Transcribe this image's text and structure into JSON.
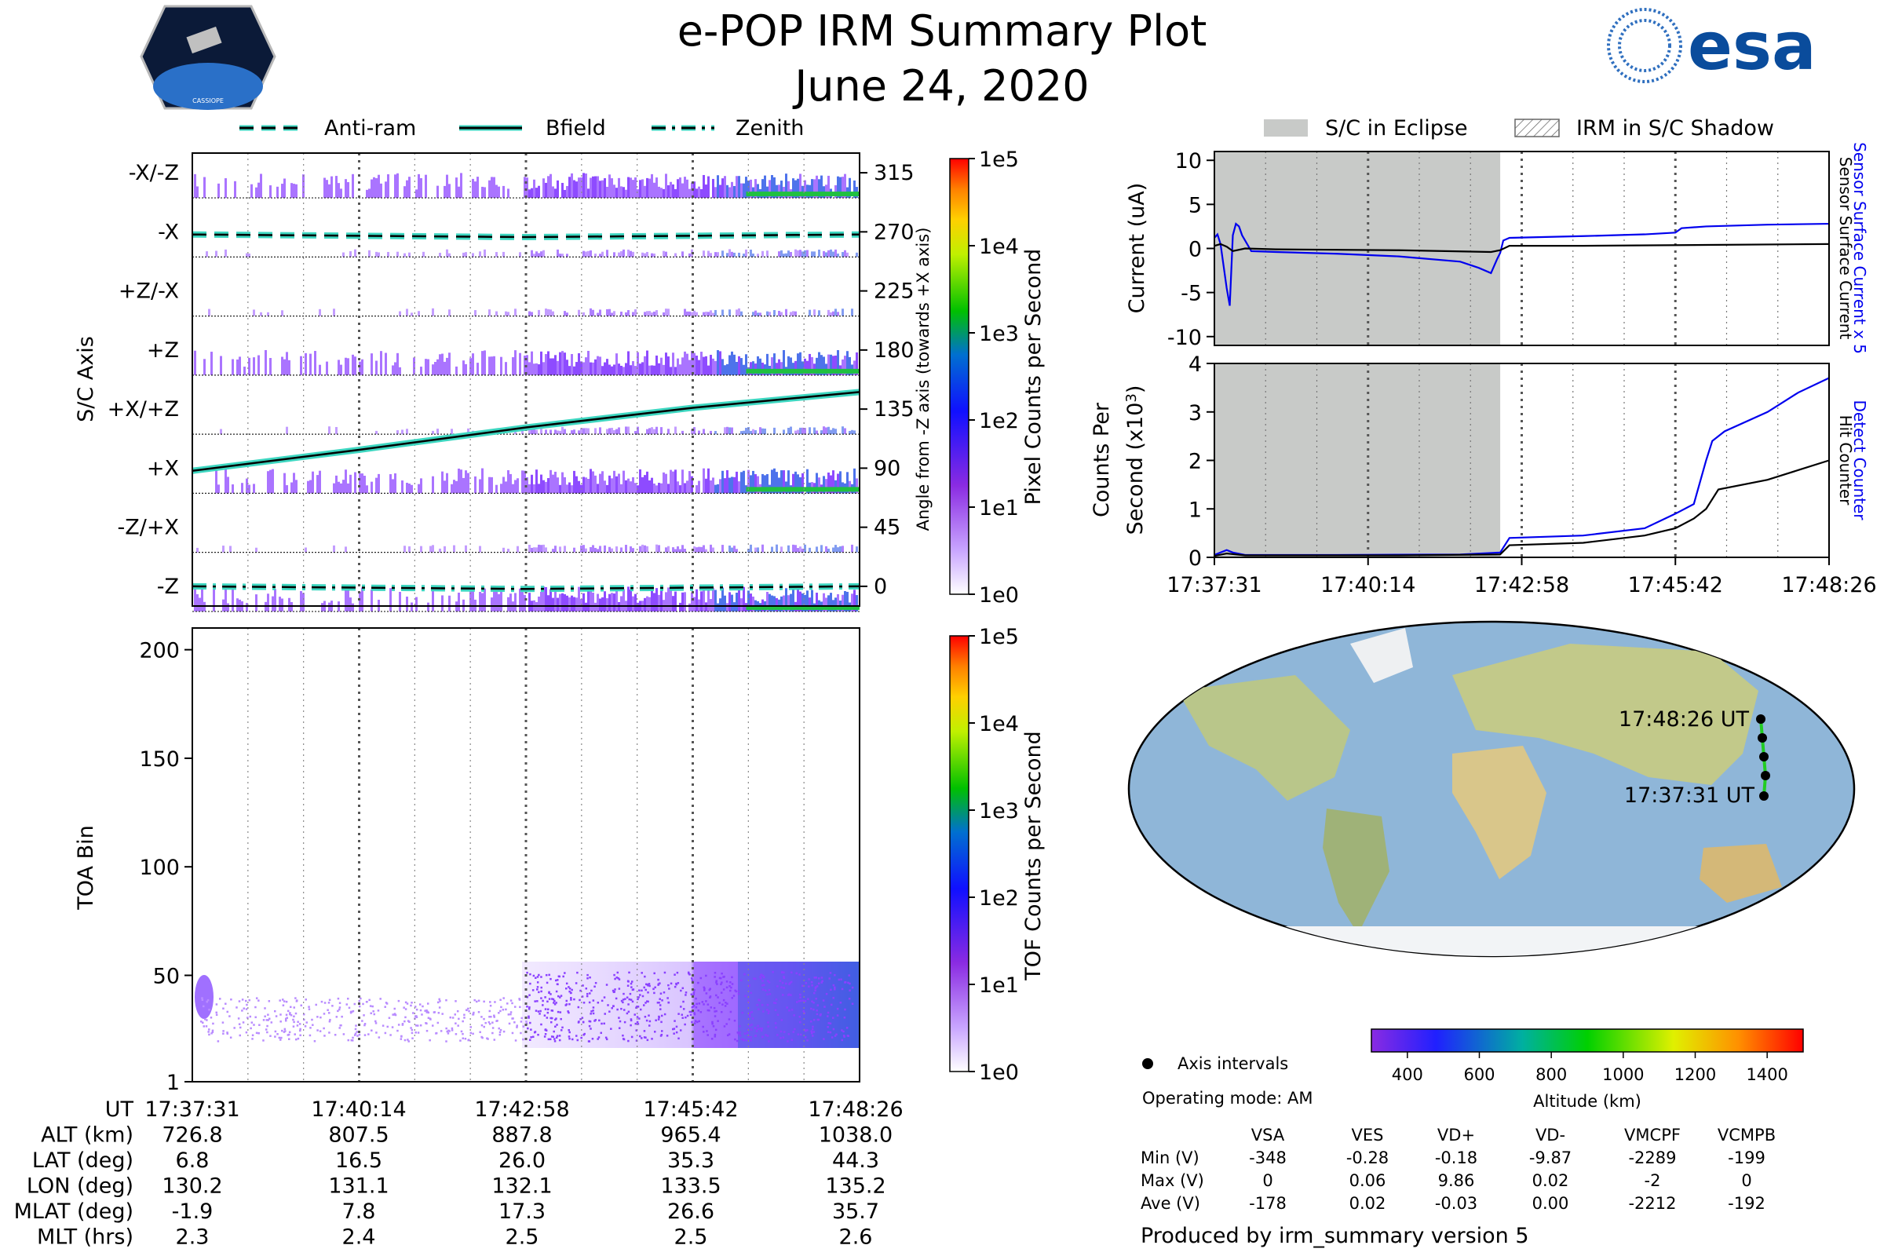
{
  "header": {
    "title": "e-POP IRM Summary Plot",
    "date": "June 24, 2020",
    "mission_logo": "CASSIOPE",
    "agency_logo": "esa"
  },
  "colors": {
    "current_blue": "#0000ee",
    "eclipse_gray": "#c8cac8",
    "bfield_teal": "#3dd6c0"
  },
  "legend_top_left": [
    "Anti-ram",
    "Bfield",
    "Zenith"
  ],
  "legend_top_right": [
    "S/C in Eclipse",
    "IRM in S/C Shadow"
  ],
  "chart_data": [
    {
      "id": "sc-axis-panel",
      "type": "heatmap",
      "ylabel": "S/C Axis",
      "y_categories": [
        "-X/-Z",
        "-X",
        "+Z/-X",
        "+Z",
        "+X/+Z",
        "+X",
        "-Z/+X",
        "-Z"
      ],
      "right_ylabel": "Angle from -Z axis (towards +X axis)",
      "right_ticks": [
        315,
        270,
        225,
        180,
        135,
        90,
        45,
        0
      ],
      "right_ylim": [
        -15,
        330
      ],
      "series": [
        {
          "name": "Bfield",
          "x": [
            0,
            0.25,
            0.5,
            0.75,
            1.0
          ],
          "y": [
            88,
            104,
            121,
            136,
            148
          ]
        },
        {
          "name": "Anti-ram",
          "x": [
            0,
            0.5,
            1.0
          ],
          "y": [
            268,
            266,
            268
          ]
        },
        {
          "name": "Zenith",
          "x": [
            0,
            0.5,
            1.0
          ],
          "y": [
            0,
            -2,
            0
          ]
        }
      ],
      "colorbar": {
        "label": "Pixel Counts per Second",
        "ticks": [
          "1e5",
          "1e4",
          "1e3",
          "1e2",
          "1e1",
          "1e0"
        ]
      }
    },
    {
      "id": "toa-panel",
      "type": "heatmap",
      "ylabel": "TOA Bin",
      "yticks": [
        200,
        150,
        100,
        50,
        1
      ],
      "ylim": [
        1,
        210
      ],
      "colorbar": {
        "label": "TOF Counts per Second",
        "ticks": [
          "1e5",
          "1e4",
          "1e3",
          "1e2",
          "1e1",
          "1e0"
        ]
      }
    },
    {
      "id": "current-panel",
      "type": "line",
      "ylabel": "Current (uA)",
      "ylim": [
        -11,
        11
      ],
      "yticks": [
        10,
        5,
        0,
        -5,
        -10
      ],
      "eclipse_range": [
        0,
        0.465
      ],
      "series": [
        {
          "name": "Sensor Surface Current x 5",
          "color": "#0000ee",
          "x": [
            0,
            0.005,
            0.01,
            0.02,
            0.025,
            0.03,
            0.035,
            0.04,
            0.045,
            0.06,
            0.1,
            0.2,
            0.3,
            0.4,
            0.43,
            0.45,
            0.46,
            0.465,
            0.47,
            0.48,
            0.6,
            0.7,
            0.75,
            0.76,
            0.8,
            0.9,
            1.0
          ],
          "y": [
            1.2,
            1.6,
            0.5,
            -4.5,
            -6.5,
            1.5,
            2.8,
            2.5,
            1.5,
            -0.3,
            -0.4,
            -0.6,
            -0.9,
            -1.5,
            -2.2,
            -2.8,
            -1.2,
            -0.5,
            0.9,
            1.2,
            1.4,
            1.6,
            1.8,
            2.3,
            2.5,
            2.7,
            2.8
          ]
        },
        {
          "name": "Sensor Surface Current",
          "color": "#000000",
          "x": [
            0,
            0.01,
            0.02,
            0.03,
            0.05,
            0.1,
            0.3,
            0.45,
            0.465,
            0.48,
            0.6,
            0.8,
            1.0
          ],
          "y": [
            0.3,
            0.5,
            0.2,
            -0.3,
            0.0,
            -0.1,
            -0.2,
            -0.4,
            -0.2,
            0.3,
            0.3,
            0.4,
            0.5
          ]
        }
      ],
      "right_labels": [
        "Sensor Surface Current x 5",
        "Sensor Surface Current"
      ]
    },
    {
      "id": "counts-panel",
      "type": "line",
      "ylabel": "Counts Per Second (x10",
      "ylabel_exp": "3",
      "ylabel_end": ")",
      "ylim": [
        0,
        4
      ],
      "yticks": [
        4,
        3,
        2,
        1,
        0
      ],
      "eclipse_range": [
        0,
        0.465
      ],
      "series": [
        {
          "name": "Detect Counter",
          "color": "#0000ee",
          "x": [
            0,
            0.02,
            0.03,
            0.05,
            0.2,
            0.4,
            0.465,
            0.48,
            0.6,
            0.7,
            0.75,
            0.78,
            0.8,
            0.81,
            0.83,
            0.9,
            0.95,
            1.0
          ],
          "y": [
            0.05,
            0.15,
            0.1,
            0.05,
            0.05,
            0.06,
            0.1,
            0.4,
            0.45,
            0.6,
            0.9,
            1.1,
            2.0,
            2.4,
            2.6,
            3.0,
            3.4,
            3.7
          ]
        },
        {
          "name": "Hit Counter",
          "color": "#000000",
          "x": [
            0,
            0.02,
            0.05,
            0.3,
            0.465,
            0.48,
            0.6,
            0.7,
            0.75,
            0.78,
            0.8,
            0.82,
            0.9,
            0.95,
            1.0
          ],
          "y": [
            0.03,
            0.08,
            0.04,
            0.04,
            0.06,
            0.25,
            0.3,
            0.45,
            0.6,
            0.8,
            1.0,
            1.4,
            1.6,
            1.8,
            2.0
          ]
        }
      ],
      "xticks": [
        "17:37:31",
        "17:40:14",
        "17:42:58",
        "17:45:42",
        "17:48:26"
      ],
      "right_labels": [
        "Detect Counter",
        "Hit Counter"
      ]
    }
  ],
  "time_axis": {
    "row_labels": [
      "UT",
      "ALT (km)",
      "LAT (deg)",
      "LON (deg)",
      "MLAT (deg)",
      "MLT (hrs)"
    ],
    "columns": [
      {
        "ut": "17:37:31",
        "alt": "726.8",
        "lat": "6.8",
        "lon": "130.2",
        "mlat": "-1.9",
        "mlt": "2.3"
      },
      {
        "ut": "17:40:14",
        "alt": "807.5",
        "lat": "16.5",
        "lon": "131.1",
        "mlat": "7.8",
        "mlt": "2.4"
      },
      {
        "ut": "17:42:58",
        "alt": "887.8",
        "lat": "26.0",
        "lon": "132.1",
        "mlat": "17.3",
        "mlt": "2.5"
      },
      {
        "ut": "17:45:42",
        "alt": "965.4",
        "lat": "35.3",
        "lon": "133.5",
        "mlat": "26.6",
        "mlt": "2.5"
      },
      {
        "ut": "17:48:26",
        "alt": "1038.0",
        "lat": "44.3",
        "lon": "135.2",
        "mlat": "35.7",
        "mlt": "2.6"
      }
    ]
  },
  "map": {
    "start_label": "17:37:31 UT",
    "end_label": "17:48:26 UT",
    "axis_intervals": "Axis intervals",
    "altitude_colorbar": {
      "label": "Altitude (km)",
      "ticks": [
        "400",
        "600",
        "800",
        "1000",
        "1200",
        "1400"
      ],
      "range": [
        300,
        1500
      ]
    }
  },
  "operating_mode": "Operating mode: AM",
  "voltage_table": {
    "headers": [
      "VSA",
      "VES",
      "VD+",
      "VD-",
      "VMCPF",
      "VCMPB"
    ],
    "rows": [
      {
        "label": "Min (V)",
        "values": [
          "-348",
          "-0.28",
          "-0.18",
          "-9.87",
          "-2289",
          "-199"
        ]
      },
      {
        "label": "Max (V)",
        "values": [
          "0",
          "0.06",
          "9.86",
          "0.02",
          "-2",
          "0"
        ]
      },
      {
        "label": "Ave (V)",
        "values": [
          "-178",
          "0.02",
          "-0.03",
          "0.00",
          "-2212",
          "-192"
        ]
      }
    ]
  },
  "footer": "Produced by irm_summary version 5"
}
